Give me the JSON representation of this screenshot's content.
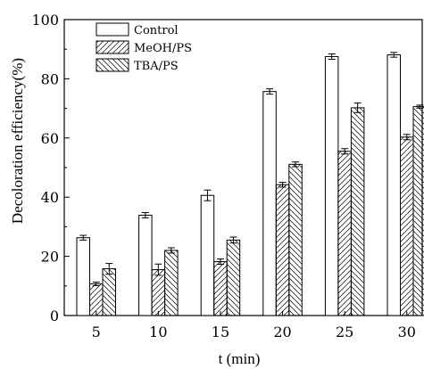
{
  "chart_data": {
    "type": "bar",
    "title": "",
    "xlabel": "t (min)",
    "ylabel": "Decoloration efficiency(%)",
    "categories": [
      "5",
      "10",
      "15",
      "20",
      "25",
      "30"
    ],
    "ylim": [
      0,
      100
    ],
    "yticks": [
      0,
      20,
      40,
      60,
      80,
      100
    ],
    "grid": false,
    "legend": "top-left",
    "series": [
      {
        "name": "Control",
        "pattern": "none",
        "values": [
          26.3,
          33.9,
          40.6,
          75.7,
          87.5,
          88.1
        ],
        "errors": [
          0.8,
          0.9,
          1.8,
          0.9,
          0.9,
          0.8
        ]
      },
      {
        "name": "MeOH/PS",
        "pattern": "hatch-forward",
        "values": [
          10.7,
          15.5,
          18.2,
          44.2,
          55.5,
          60.3
        ],
        "errors": [
          0.6,
          1.9,
          0.9,
          0.8,
          0.9,
          0.9
        ]
      },
      {
        "name": "TBA/PS",
        "pattern": "hatch-backward",
        "values": [
          15.8,
          22.0,
          25.5,
          51.1,
          70.2,
          70.6
        ],
        "errors": [
          1.8,
          0.9,
          1.0,
          0.8,
          1.6,
          0.5
        ]
      }
    ]
  }
}
